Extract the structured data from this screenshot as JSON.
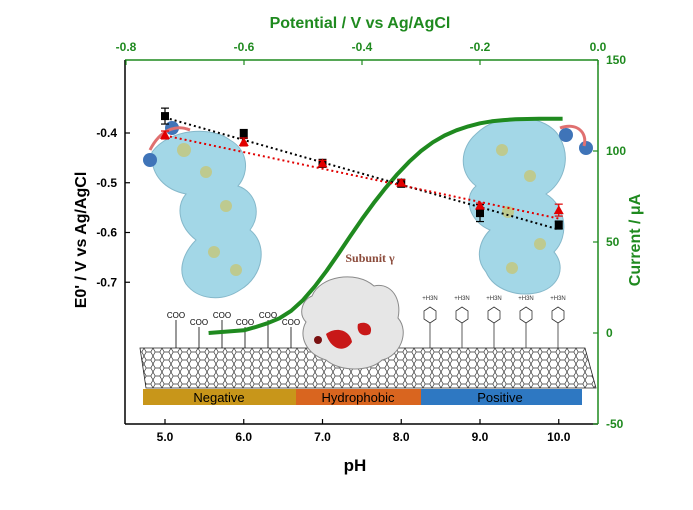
{
  "colors": {
    "green": "#1f8a1f",
    "black_series": "#000000",
    "red_series": "#e10000",
    "protein": "#9fd5e6",
    "band_negative": "#c8961a",
    "band_hydrophobic": "#d9651f",
    "band_positive": "#2e78c2"
  },
  "chart_data": [
    {
      "type": "scatter",
      "title": "",
      "xlabel": "pH",
      "ylabel": "E0' / V vs Ag/AgCl",
      "xlim": [
        4.5,
        10.6
      ],
      "ylim": [
        -0.755,
        -0.305
      ],
      "xticks": [
        "5.0",
        "6.0",
        "7.0",
        "8.0",
        "9.0",
        "10.0"
      ],
      "yticks": [
        "-0.4",
        "-0.5",
        "-0.6",
        "-0.7"
      ],
      "series": [
        {
          "marker": "square",
          "color": "#000000",
          "points": [
            {
              "x": 5.0,
              "y": -0.366,
              "err": 0.016
            },
            {
              "x": 6.0,
              "y": -0.402,
              "err": 0.009
            },
            {
              "x": 7.0,
              "y": -0.461,
              "err": 0.008
            },
            {
              "x": 8.0,
              "y": -0.501,
              "err": 0.008
            },
            {
              "x": 9.0,
              "y": -0.561,
              "err": 0.017
            },
            {
              "x": 10.0,
              "y": -0.585,
              "err": 0.008
            }
          ],
          "fit": [
            [
              5.0,
              -0.369
            ],
            [
              10.0,
              -0.594
            ]
          ]
        },
        {
          "marker": "triangle",
          "color": "#e10000",
          "points": [
            {
              "x": 5.0,
              "y": -0.404,
              "err": 0.008
            },
            {
              "x": 6.0,
              "y": -0.418,
              "err": 0.008
            },
            {
              "x": 7.0,
              "y": -0.461,
              "err": 0.006
            },
            {
              "x": 8.0,
              "y": -0.5,
              "err": 0.006
            },
            {
              "x": 9.0,
              "y": -0.546,
              "err": 0.005
            },
            {
              "x": 10.0,
              "y": -0.555,
              "err": 0.012
            }
          ],
          "fit": [
            [
              5.0,
              -0.405
            ],
            [
              10.0,
              -0.572
            ]
          ]
        }
      ]
    },
    {
      "type": "line",
      "title": "",
      "xlabel": "Potential / V vs Ag/AgCl",
      "ylabel": "Current / μA",
      "xlim": [
        -0.8,
        0.0
      ],
      "ylim": [
        -50,
        150
      ],
      "xticks": [
        "-0.8",
        "-0.6",
        "-0.4",
        "-0.2",
        "0.0"
      ],
      "yticks": [
        "150",
        "100",
        "50",
        "0",
        "-50"
      ],
      "x": [
        -0.66,
        -0.6,
        -0.58,
        -0.56,
        -0.54,
        -0.52,
        -0.5,
        -0.48,
        -0.46,
        -0.44,
        -0.42,
        -0.4,
        -0.38,
        -0.36,
        -0.34,
        -0.32,
        -0.3,
        -0.28,
        -0.26,
        -0.24,
        -0.22,
        -0.2,
        -0.18,
        -0.16,
        -0.14,
        -0.12,
        -0.1,
        -0.08,
        -0.06
      ],
      "y": [
        0,
        1.5,
        3.3,
        5.4,
        8.1,
        12.2,
        18.1,
        25.6,
        34.2,
        43.5,
        53.2,
        62.6,
        71.5,
        79.7,
        87.3,
        94.1,
        100,
        104.8,
        108.5,
        111.4,
        113.5,
        115.2,
        116.3,
        117.0,
        117.4,
        117.6,
        117.7,
        117.7,
        117.7
      ]
    }
  ],
  "annotations": {
    "subunit": "Subunit γ",
    "coo": "COO",
    "plus_group": "+H3N"
  },
  "bands": [
    "Negative",
    "Hydrophobic",
    "Positive"
  ]
}
